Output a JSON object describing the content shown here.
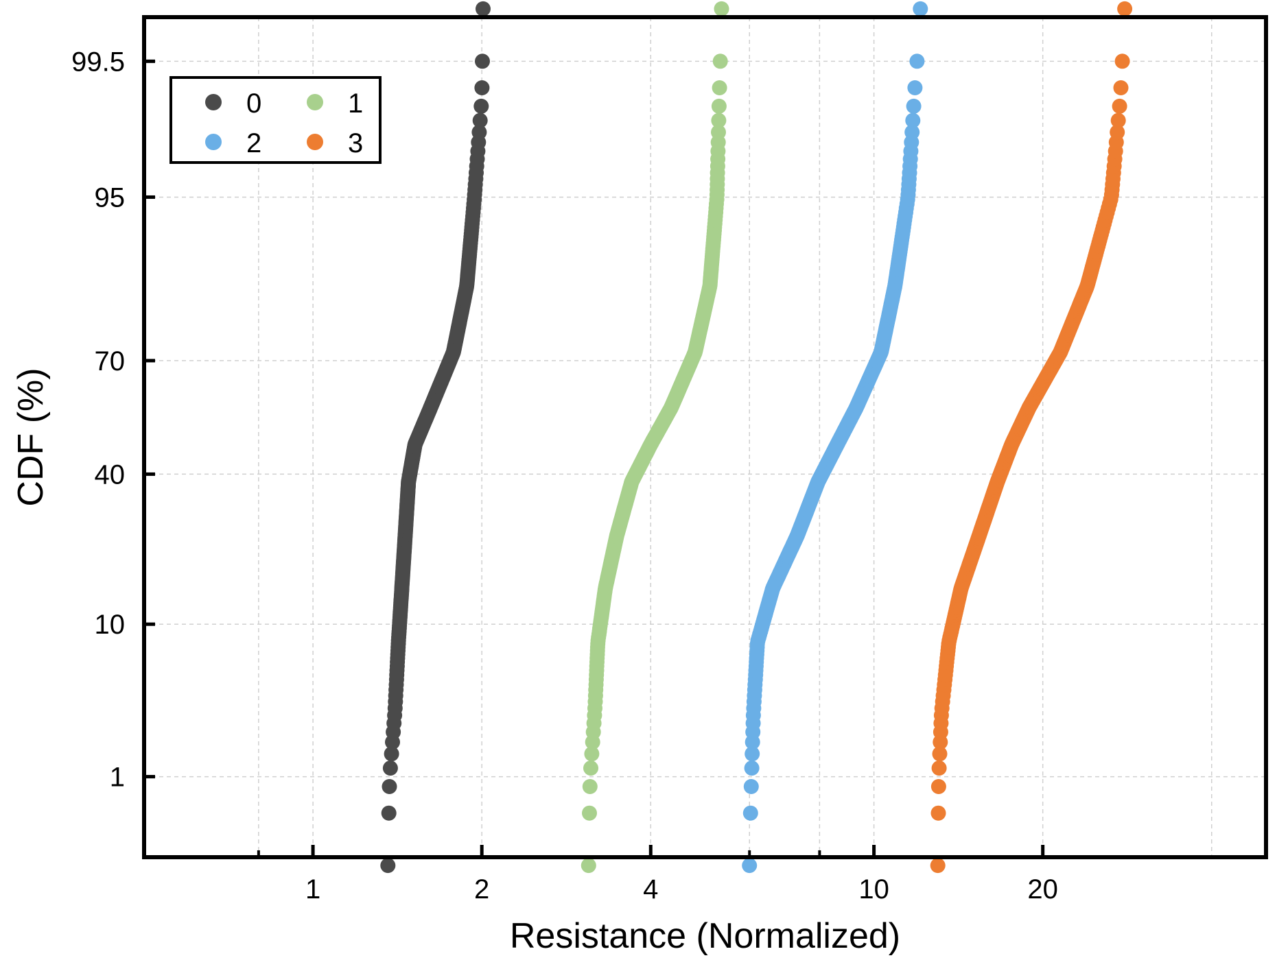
{
  "chart_data": {
    "type": "scatter",
    "title": "",
    "xlabel": "Resistance (Normalized)",
    "ylabel": "CDF (%)",
    "xscale": "log",
    "yscale": "probability",
    "xlim": [
      0.5,
      50
    ],
    "ylim": [
      0.2,
      99.8
    ],
    "x_ticks": [
      {
        "value": 1,
        "label": "1"
      },
      {
        "value": 2,
        "label": "2"
      },
      {
        "value": 4,
        "label": "4"
      },
      {
        "value": 10,
        "label": "10"
      },
      {
        "value": 20,
        "label": "20"
      }
    ],
    "y_ticks": [
      {
        "value": 1,
        "label": "1"
      },
      {
        "value": 10,
        "label": "10"
      },
      {
        "value": 40,
        "label": "40"
      },
      {
        "value": 70,
        "label": "70"
      },
      {
        "value": 95,
        "label": "95"
      },
      {
        "value": 99.5,
        "label": "99.5"
      }
    ],
    "grid": true,
    "legend_position": "top-left",
    "n_points_per_series": 300,
    "series": [
      {
        "name": "0",
        "color": "#4a4a4a",
        "x": [
          1.36,
          1.37,
          1.4,
          1.42,
          1.44,
          1.46,
          1.48,
          1.52,
          1.62,
          1.78,
          1.88,
          1.94,
          2.0,
          2.01
        ],
        "y": [
          0.2,
          1,
          3,
          8,
          15,
          25,
          38,
          48,
          58,
          72,
          85,
          95,
          99,
          99.8
        ]
      },
      {
        "name": "1",
        "color": "#a8d08d",
        "x": [
          3.1,
          3.12,
          3.18,
          3.22,
          3.32,
          3.48,
          3.7,
          4.0,
          4.35,
          4.8,
          5.1,
          5.25,
          5.3,
          5.35
        ],
        "y": [
          0.2,
          1,
          3,
          8,
          15,
          25,
          38,
          48,
          58,
          72,
          85,
          95,
          99,
          99.8
        ]
      },
      {
        "name": "2",
        "color": "#6aafe6",
        "x": [
          6.0,
          6.05,
          6.1,
          6.2,
          6.6,
          7.3,
          7.95,
          8.6,
          9.3,
          10.3,
          10.9,
          11.5,
          11.8,
          12.1
        ],
        "y": [
          0.2,
          1,
          3,
          8,
          15,
          25,
          38,
          48,
          58,
          72,
          85,
          95,
          99,
          99.8
        ]
      },
      {
        "name": "3",
        "color": "#ed7d31",
        "x": [
          13.0,
          13.05,
          13.2,
          13.6,
          14.3,
          15.4,
          16.6,
          17.6,
          18.9,
          21.5,
          24.0,
          26.5,
          27.5,
          28.0
        ],
        "y": [
          0.2,
          1,
          3,
          8,
          15,
          25,
          38,
          48,
          58,
          72,
          85,
          95,
          99,
          99.8
        ]
      }
    ]
  }
}
